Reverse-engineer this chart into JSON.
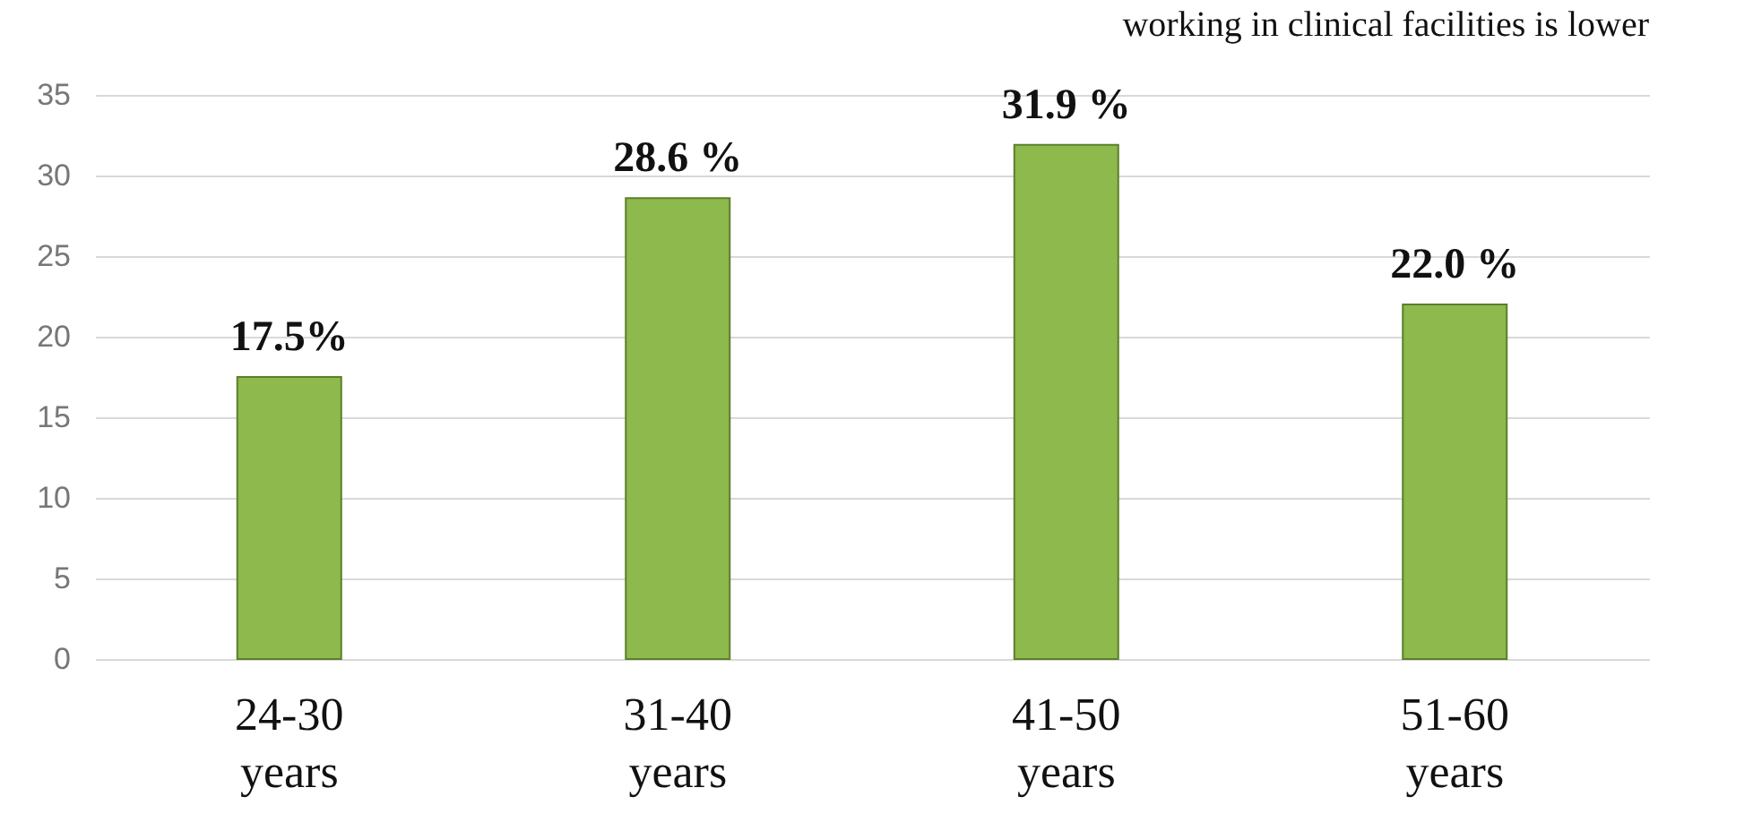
{
  "chart_data": {
    "type": "bar",
    "annotations": [
      "working in clinical facilities is lower"
    ],
    "categories": [
      "24-30 years",
      "31-40 years",
      "41-50 years",
      "51-60 years"
    ],
    "values": [
      17.5,
      28.6,
      31.9,
      22.0
    ],
    "value_labels": [
      "17.5%",
      "28.6 %",
      "31.9 %",
      "22.0 %"
    ],
    "color": "#8db94d",
    "ylim": [
      0,
      35
    ],
    "yticks": [
      0,
      5,
      10,
      15,
      20,
      25,
      30,
      35
    ],
    "grid": "y"
  }
}
